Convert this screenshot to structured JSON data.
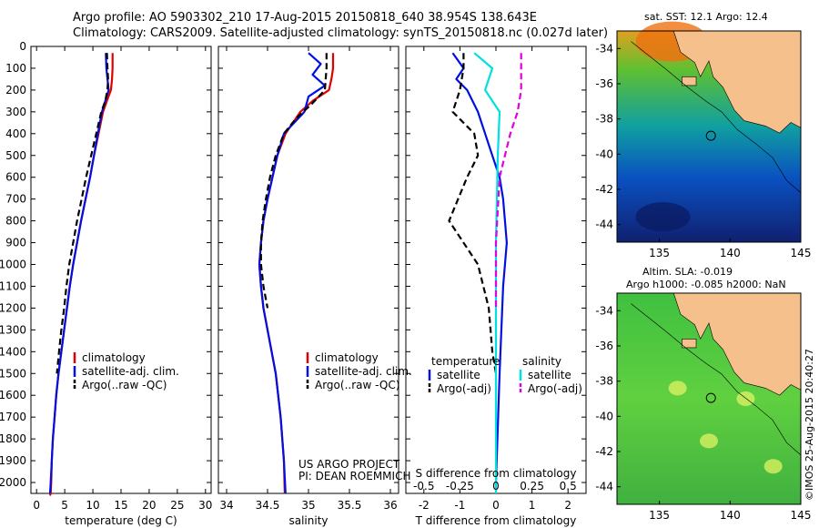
{
  "header": {
    "line1": "Argo profile: AO 5903302_210 17-Aug-2015 20150818_640 38.954S 138.643E",
    "line2": "Climatology: CARS2009. Satellite-adjusted climatology: synTS_20150818.nc (0.027d later)"
  },
  "colors": {
    "climatology": "#e00000",
    "satellite": "#0010e0",
    "argo": "#000000",
    "sat_salinity": "#00e0e0",
    "argo_salinity_adj": "#e000e0",
    "land": "#f6c08c"
  },
  "chart_data": [
    {
      "type": "line",
      "panel": "temperature",
      "xlabel": "temperature (deg C)",
      "ylabel": "",
      "xlim": [
        -1,
        31
      ],
      "ylim": [
        2050,
        0
      ],
      "xticks": [
        0,
        5,
        10,
        15,
        20,
        25,
        30
      ],
      "yticks": [
        0,
        100,
        200,
        300,
        400,
        500,
        600,
        700,
        800,
        900,
        1000,
        1100,
        1200,
        1300,
        1400,
        1500,
        1600,
        1700,
        1800,
        1900,
        2000
      ],
      "legend": [
        "climatology",
        "satellite-adj. clim.",
        "Argo(..raw -QC)"
      ],
      "series": [
        {
          "name": "climatology",
          "style": "solid",
          "color": "#e00000",
          "x": [
            13.5,
            13.5,
            13.4,
            13.2,
            12.5,
            11.8,
            11.0,
            10.2,
            9.5,
            8.7,
            7.9,
            7.2,
            6.5,
            5.9,
            5.4,
            4.9,
            4.4,
            3.9,
            3.5,
            3.2,
            2.9,
            2.7,
            2.6,
            2.5,
            2.4
          ],
          "y": [
            30,
            100,
            150,
            200,
            250,
            300,
            400,
            500,
            600,
            700,
            800,
            900,
            1000,
            1100,
            1200,
            1300,
            1400,
            1500,
            1600,
            1700,
            1800,
            1900,
            2000,
            2050,
            2060
          ]
        },
        {
          "name": "satellite-adj. clim.",
          "style": "solid",
          "color": "#0010e0",
          "x": [
            12.3,
            12.4,
            12.6,
            12.8,
            12.2,
            11.6,
            10.9,
            10.2,
            9.5,
            8.7,
            7.9,
            7.2,
            6.5,
            5.9,
            5.4,
            4.9,
            4.4,
            3.9,
            3.5,
            3.2,
            2.9,
            2.7,
            2.5,
            2.4
          ],
          "y": [
            30,
            100,
            150,
            200,
            250,
            300,
            400,
            500,
            600,
            700,
            800,
            900,
            1000,
            1100,
            1200,
            1300,
            1400,
            1500,
            1600,
            1700,
            1800,
            1900,
            2000,
            2050
          ]
        },
        {
          "name": "Argo(..raw -QC)",
          "style": "dashed",
          "color": "#000000",
          "x": [
            12.5,
            12.6,
            12.7,
            12.6,
            12.2,
            11.5,
            10.6,
            9.7,
            8.8,
            8.0,
            7.2,
            6.5,
            5.8,
            5.3,
            4.9,
            4.4,
            4.0,
            3.6
          ],
          "y": [
            30,
            100,
            150,
            200,
            250,
            300,
            400,
            500,
            600,
            700,
            800,
            900,
            1000,
            1100,
            1200,
            1300,
            1400,
            1500
          ]
        }
      ]
    },
    {
      "type": "line",
      "panel": "salinity",
      "xlabel": "salinity",
      "ylabel": "",
      "xlim": [
        33.9,
        36.1
      ],
      "ylim": [
        2050,
        0
      ],
      "xticks": [
        34,
        34.5,
        35,
        35.5,
        36
      ],
      "xticklabels": [
        "34",
        "34.5",
        "35",
        "35.5",
        "36"
      ],
      "legend": [
        "climatology",
        "satellite-adj. clim.",
        "Argo(..raw -QC)"
      ],
      "annotation": [
        "US ARGO PROJECT",
        "PI: DEAN ROEMMICH"
      ],
      "series": [
        {
          "name": "climatology",
          "style": "solid",
          "color": "#e00000",
          "x": [
            35.3,
            35.3,
            35.28,
            35.25,
            35.05,
            34.9,
            34.72,
            34.62,
            34.56,
            34.5,
            34.45,
            34.42,
            34.4,
            34.42,
            34.45,
            34.5,
            34.55,
            34.6,
            34.63,
            34.66,
            34.68,
            34.7,
            34.71
          ],
          "y": [
            30,
            100,
            150,
            200,
            250,
            300,
            400,
            500,
            600,
            700,
            800,
            900,
            1000,
            1100,
            1200,
            1300,
            1400,
            1500,
            1600,
            1700,
            1800,
            1900,
            2050
          ]
        },
        {
          "name": "satellite-adj. clim.",
          "style": "solid",
          "color": "#0010e0",
          "x": [
            35.0,
            35.15,
            35.05,
            35.2,
            35.0,
            34.95,
            34.7,
            34.62,
            34.56,
            34.5,
            34.45,
            34.42,
            34.4,
            34.42,
            34.45,
            34.5,
            34.55,
            34.6,
            34.63,
            34.66,
            34.68,
            34.7,
            34.72
          ],
          "y": [
            30,
            80,
            130,
            180,
            230,
            300,
            400,
            500,
            600,
            700,
            800,
            900,
            1000,
            1100,
            1200,
            1300,
            1400,
            1500,
            1600,
            1700,
            1800,
            1900,
            2050
          ]
        },
        {
          "name": "Argo(..raw -QC)",
          "style": "dashed",
          "color": "#000000",
          "x": [
            35.22,
            35.22,
            35.2,
            35.05,
            34.85,
            34.7,
            34.6,
            34.53,
            34.48,
            34.44,
            34.42,
            34.42,
            34.45,
            34.5
          ],
          "y": [
            30,
            100,
            200,
            260,
            330,
            400,
            500,
            600,
            700,
            800,
            900,
            1000,
            1100,
            1200
          ]
        }
      ]
    },
    {
      "type": "line",
      "panel": "differences",
      "xlabel": "T difference from climatology",
      "ylabel": "",
      "xlim": [
        -2.5,
        2.5
      ],
      "ylim": [
        2050,
        0
      ],
      "xticks": [
        -2,
        -1,
        0,
        1,
        2
      ],
      "top_axis_label": "S difference from climatology",
      "top_xticks": [
        -0.5,
        -0.25,
        0,
        0.25,
        0.5
      ],
      "top_xticklabels": [
        "-0.5",
        "-0.25",
        "0",
        "0.25",
        "0.5"
      ],
      "legend_groups": [
        {
          "title": "temperature",
          "entries": [
            "satellite",
            "Argo(-adj)"
          ]
        },
        {
          "title": "salinity",
          "entries": [
            "satellite",
            "Argo(-adj)"
          ]
        }
      ],
      "series": [
        {
          "name": "temperature satellite",
          "style": "solid",
          "color": "#0010e0",
          "x": [
            -1.2,
            -0.9,
            -1.1,
            -0.8,
            -0.5,
            -0.3,
            -0.1,
            0.1,
            0.2,
            0.25,
            0.3,
            0.2,
            0.1,
            0.0
          ],
          "y": [
            30,
            100,
            150,
            200,
            300,
            400,
            500,
            600,
            700,
            800,
            900,
            1100,
            1500,
            2000
          ]
        },
        {
          "name": "temperature Argo(-adj)",
          "style": "dashed",
          "color": "#000000",
          "x": [
            -0.9,
            -0.9,
            -1.0,
            -1.2,
            -0.6,
            -0.5,
            -0.8,
            -1.3,
            -0.9,
            -0.5,
            -0.2,
            -0.1,
            0.0
          ],
          "y": [
            30,
            100,
            200,
            300,
            400,
            500,
            600,
            800,
            900,
            1000,
            1200,
            1400,
            1500
          ]
        },
        {
          "name": "salinity satellite",
          "style": "solid",
          "color": "#00e0e0",
          "x": [
            -0.6,
            -0.1,
            -0.3,
            0.1,
            0.05,
            0.0,
            0.0,
            0.0
          ],
          "y": [
            30,
            100,
            200,
            300,
            500,
            900,
            1500,
            2050
          ]
        },
        {
          "name": "salinity Argo(-adj)",
          "style": "dashed",
          "color": "#e000e0",
          "x": [
            0.7,
            0.7,
            0.6,
            0.4,
            0.1,
            0.0,
            0.0
          ],
          "y": [
            30,
            200,
            300,
            400,
            600,
            900,
            1200
          ]
        }
      ]
    }
  ],
  "maps": {
    "sst": {
      "title": "sat. SST: 12.1  Argo: 12.4",
      "yticks": [
        "-34",
        "-36",
        "-38",
        "-40",
        "-42",
        "-44"
      ],
      "xticks": [
        "135",
        "140",
        "145"
      ],
      "lat_range": [
        -45,
        -33
      ],
      "lon_range": [
        132,
        145
      ],
      "marker": {
        "lon": 138.643,
        "lat": -38.954
      }
    },
    "sla": {
      "title_line1": "Altim. SLA: -0.019",
      "title_line2": "Argo h1000: -0.085 h2000: NaN",
      "yticks": [
        "-34",
        "-36",
        "-38",
        "-40",
        "-42",
        "-44"
      ],
      "xticks": [
        "135",
        "140",
        "145"
      ],
      "lat_range": [
        -45,
        -33
      ],
      "lon_range": [
        132,
        145
      ],
      "marker": {
        "lon": 138.643,
        "lat": -38.954
      }
    }
  },
  "credit": "©IMOS 25-Aug-2015 20:40:27"
}
